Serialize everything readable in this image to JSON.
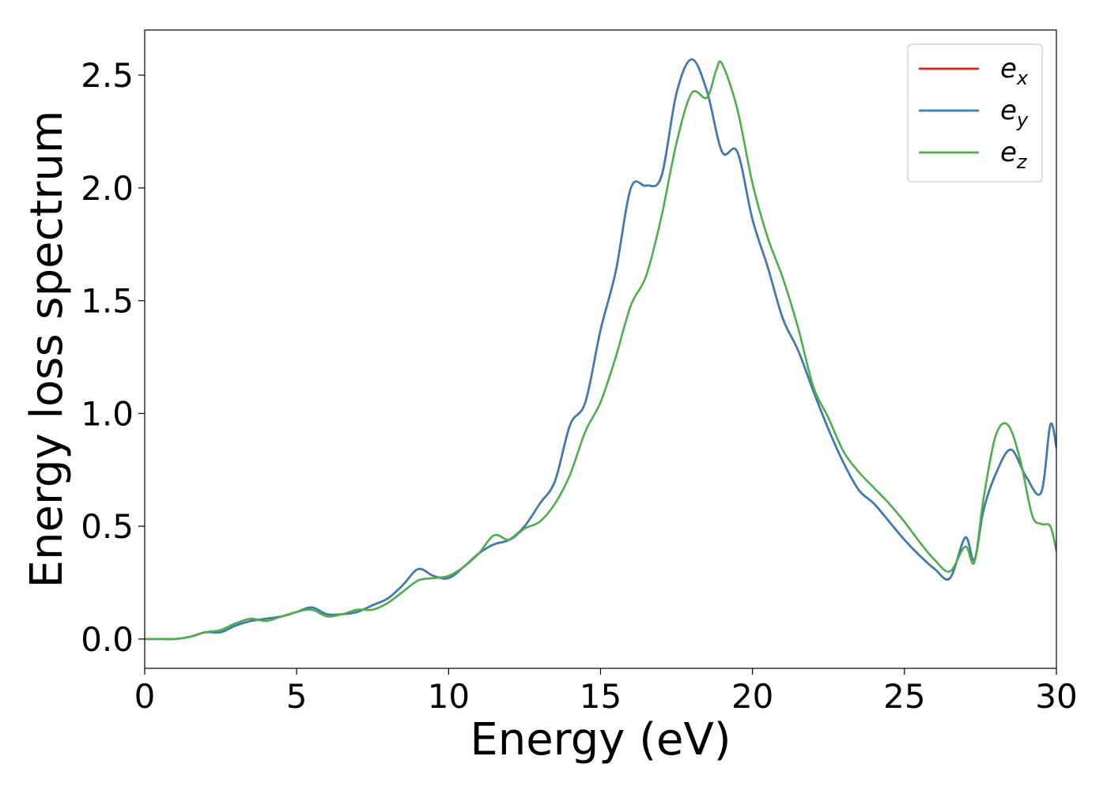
{
  "chart_data": {
    "type": "line",
    "title": "",
    "xlabel": "Energy (eV)",
    "ylabel": "Energy loss spectrum",
    "xlim": [
      0,
      30
    ],
    "ylim": [
      -0.13,
      2.7
    ],
    "xticks": [
      0,
      5,
      10,
      15,
      20,
      25,
      30
    ],
    "xtick_labels": [
      "0",
      "5",
      "10",
      "15",
      "20",
      "25",
      "30"
    ],
    "yticks": [
      0.0,
      0.5,
      1.0,
      1.5,
      2.0,
      2.5
    ],
    "ytick_labels": [
      "0.0",
      "0.5",
      "1.0",
      "1.5",
      "2.0",
      "2.5"
    ],
    "grid": false,
    "legend": {
      "position": "top-right",
      "entries": [
        {
          "base": "e",
          "sub": "x",
          "color": "#e41a1c"
        },
        {
          "base": "e",
          "sub": "y",
          "color": "#377eb8"
        },
        {
          "base": "e",
          "sub": "z",
          "color": "#4daf4a"
        }
      ]
    },
    "series": [
      {
        "name": "e_x",
        "color": "#e41a1c",
        "x": [
          0,
          0.5,
          1,
          1.5,
          2,
          2.5,
          3,
          3.5,
          4,
          4.5,
          5,
          5.5,
          6,
          6.5,
          7,
          7.5,
          8,
          8.5,
          9,
          9.5,
          10,
          10.5,
          11,
          11.5,
          12,
          12.5,
          13,
          13.5,
          14,
          14.5,
          15,
          15.5,
          16,
          16.5,
          17,
          17.5,
          18,
          18.5,
          19,
          19.5,
          20,
          20.5,
          21,
          21.5,
          22,
          22.5,
          23,
          23.5,
          24,
          24.5,
          25,
          25.5,
          26,
          26.5,
          27,
          27.3,
          27.6,
          28,
          28.5,
          29,
          29.5,
          29.8,
          30
        ],
        "y": [
          0,
          0,
          0,
          0.01,
          0.03,
          0.03,
          0.06,
          0.08,
          0.09,
          0.1,
          0.12,
          0.14,
          0.11,
          0.11,
          0.12,
          0.15,
          0.18,
          0.24,
          0.31,
          0.28,
          0.27,
          0.32,
          0.38,
          0.42,
          0.44,
          0.5,
          0.6,
          0.7,
          0.95,
          1.05,
          1.37,
          1.63,
          2.0,
          2.01,
          2.05,
          2.42,
          2.57,
          2.43,
          2.16,
          2.16,
          1.86,
          1.65,
          1.42,
          1.28,
          1.1,
          0.93,
          0.78,
          0.66,
          0.6,
          0.52,
          0.44,
          0.37,
          0.31,
          0.27,
          0.45,
          0.35,
          0.57,
          0.73,
          0.84,
          0.72,
          0.65,
          0.95,
          0.85
        ]
      },
      {
        "name": "e_y",
        "color": "#377eb8",
        "x": [
          0,
          0.5,
          1,
          1.5,
          2,
          2.5,
          3,
          3.5,
          4,
          4.5,
          5,
          5.5,
          6,
          6.5,
          7,
          7.5,
          8,
          8.5,
          9,
          9.5,
          10,
          10.5,
          11,
          11.5,
          12,
          12.5,
          13,
          13.5,
          14,
          14.5,
          15,
          15.5,
          16,
          16.5,
          17,
          17.5,
          18,
          18.5,
          19,
          19.5,
          20,
          20.5,
          21,
          21.5,
          22,
          22.5,
          23,
          23.5,
          24,
          24.5,
          25,
          25.5,
          26,
          26.5,
          27,
          27.3,
          27.6,
          28,
          28.5,
          29,
          29.5,
          29.8,
          30
        ],
        "y": [
          0,
          0,
          0,
          0.01,
          0.03,
          0.03,
          0.06,
          0.08,
          0.09,
          0.1,
          0.12,
          0.14,
          0.11,
          0.11,
          0.12,
          0.15,
          0.18,
          0.24,
          0.31,
          0.28,
          0.27,
          0.32,
          0.38,
          0.42,
          0.44,
          0.5,
          0.6,
          0.7,
          0.95,
          1.05,
          1.37,
          1.63,
          2.0,
          2.01,
          2.05,
          2.42,
          2.57,
          2.43,
          2.16,
          2.16,
          1.86,
          1.65,
          1.42,
          1.28,
          1.1,
          0.93,
          0.78,
          0.66,
          0.6,
          0.52,
          0.44,
          0.37,
          0.31,
          0.27,
          0.45,
          0.35,
          0.57,
          0.73,
          0.84,
          0.72,
          0.65,
          0.95,
          0.85
        ]
      },
      {
        "name": "e_z",
        "color": "#4daf4a",
        "x": [
          0,
          0.5,
          1,
          1.5,
          2,
          2.5,
          3,
          3.5,
          4,
          4.5,
          5,
          5.5,
          6,
          6.5,
          7,
          7.5,
          8,
          8.5,
          9,
          9.5,
          10,
          10.5,
          11,
          11.5,
          12,
          12.5,
          13,
          13.5,
          14,
          14.5,
          15,
          15.5,
          16,
          16.5,
          17,
          17.5,
          18,
          18.5,
          18.8,
          19,
          19.5,
          20,
          20.5,
          21,
          21.5,
          22,
          22.5,
          23,
          23.5,
          24,
          24.5,
          25,
          25.5,
          26,
          26.5,
          27,
          27.3,
          27.6,
          28,
          28.4,
          28.8,
          29.2,
          29.5,
          29.8,
          30
        ],
        "y": [
          0,
          0,
          0,
          0.01,
          0.03,
          0.04,
          0.07,
          0.09,
          0.08,
          0.1,
          0.12,
          0.13,
          0.1,
          0.11,
          0.13,
          0.13,
          0.16,
          0.21,
          0.26,
          0.27,
          0.28,
          0.32,
          0.38,
          0.46,
          0.44,
          0.49,
          0.52,
          0.6,
          0.73,
          0.92,
          1.05,
          1.25,
          1.48,
          1.61,
          1.87,
          2.2,
          2.42,
          2.4,
          2.52,
          2.55,
          2.35,
          2.02,
          1.78,
          1.6,
          1.38,
          1.12,
          0.98,
          0.83,
          0.74,
          0.67,
          0.6,
          0.52,
          0.43,
          0.35,
          0.3,
          0.41,
          0.34,
          0.62,
          0.9,
          0.95,
          0.8,
          0.55,
          0.51,
          0.5,
          0.39
        ]
      }
    ]
  }
}
